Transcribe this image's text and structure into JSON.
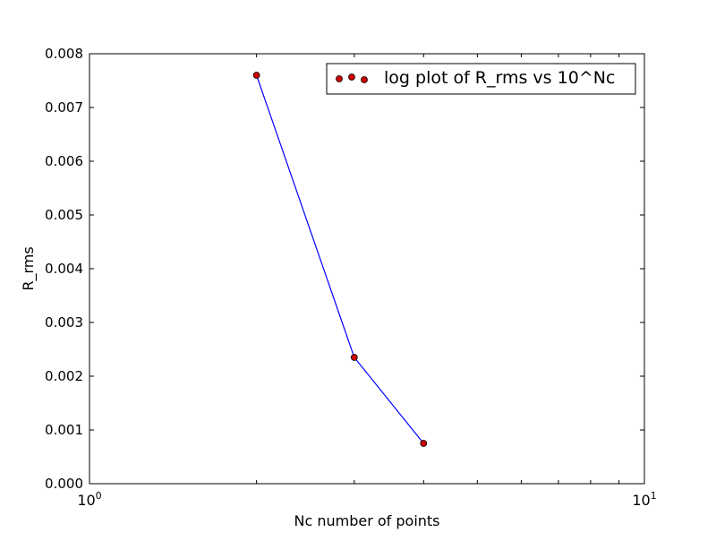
{
  "chart_data": {
    "type": "scatter",
    "xlabel": "Nc number of points",
    "ylabel": "R_rms",
    "x_scale": "log",
    "xlim": [
      1,
      10
    ],
    "ylim": [
      0,
      0.008
    ],
    "x_ticks": [
      {
        "value": 1,
        "base": "10",
        "exp": "0"
      },
      {
        "value": 10,
        "base": "10",
        "exp": "1"
      }
    ],
    "y_ticks": [
      "0.000",
      "0.001",
      "0.002",
      "0.003",
      "0.004",
      "0.005",
      "0.006",
      "0.007",
      "0.008"
    ],
    "grid": false,
    "legend_position": "top-right",
    "series": [
      {
        "name": "log plot of R_rms vs 10^Nc",
        "x": [
          2,
          3,
          4
        ],
        "y": [
          0.0076,
          0.00235,
          0.00075
        ],
        "marker_color": "#cc0000",
        "line_color": "#0000ff"
      }
    ]
  }
}
